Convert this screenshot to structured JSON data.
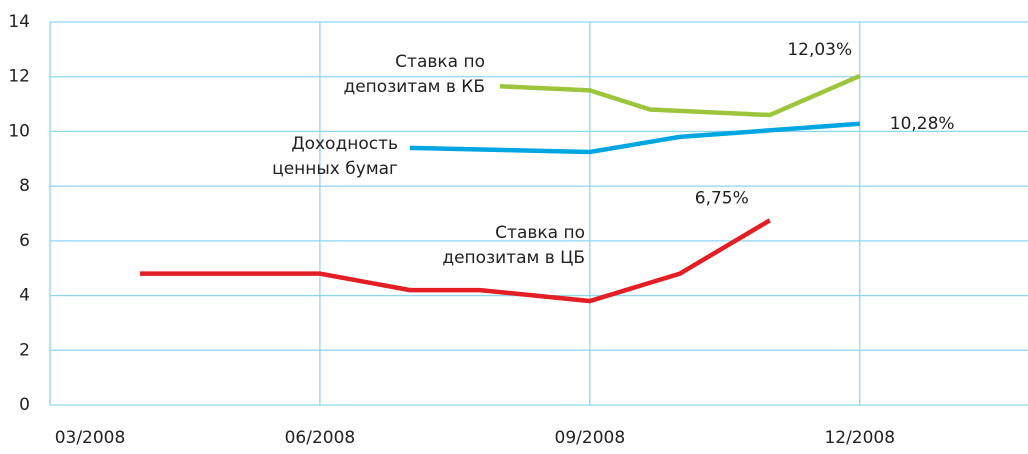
{
  "chart_data": {
    "type": "line",
    "xlim": [
      3,
      13.87
    ],
    "ylim": [
      0,
      14
    ],
    "xticks": [
      {
        "value": 3,
        "label": "03/2008"
      },
      {
        "value": 6,
        "label": "06/2008"
      },
      {
        "value": 9,
        "label": "09/2008"
      },
      {
        "value": 12,
        "label": "12/2008"
      }
    ],
    "yticks": [
      0,
      2,
      4,
      6,
      8,
      10,
      12,
      14
    ],
    "grid": true,
    "series": [
      {
        "name": [
          "Ставка по",
          "депозитам в КБ"
        ],
        "color": "#9dc53c",
        "x": [
          8,
          9,
          9.67,
          11,
          12
        ],
        "values": [
          11.65,
          11.5,
          10.8,
          10.6,
          12.03
        ],
        "value_labels": [
          null,
          null,
          null,
          null,
          "12,03%"
        ]
      },
      {
        "name": [
          "Доходность",
          "ценных бумаг"
        ],
        "color": "#00a6e2",
        "x": [
          7,
          9,
          10,
          12
        ],
        "values": [
          9.4,
          9.25,
          9.8,
          10.28
        ],
        "value_labels": [
          null,
          null,
          null,
          "10,28%"
        ]
      },
      {
        "name": [
          "Ставка по",
          "депозитам в ЦБ"
        ],
        "color": "#e31e25",
        "x": [
          4,
          6,
          7,
          7.78,
          9,
          10,
          11
        ],
        "values": [
          4.8,
          4.8,
          4.2,
          4.2,
          3.8,
          4.8,
          6.75
        ],
        "value_labels": [
          null,
          null,
          null,
          null,
          null,
          null,
          "6,75%"
        ]
      }
    ]
  }
}
